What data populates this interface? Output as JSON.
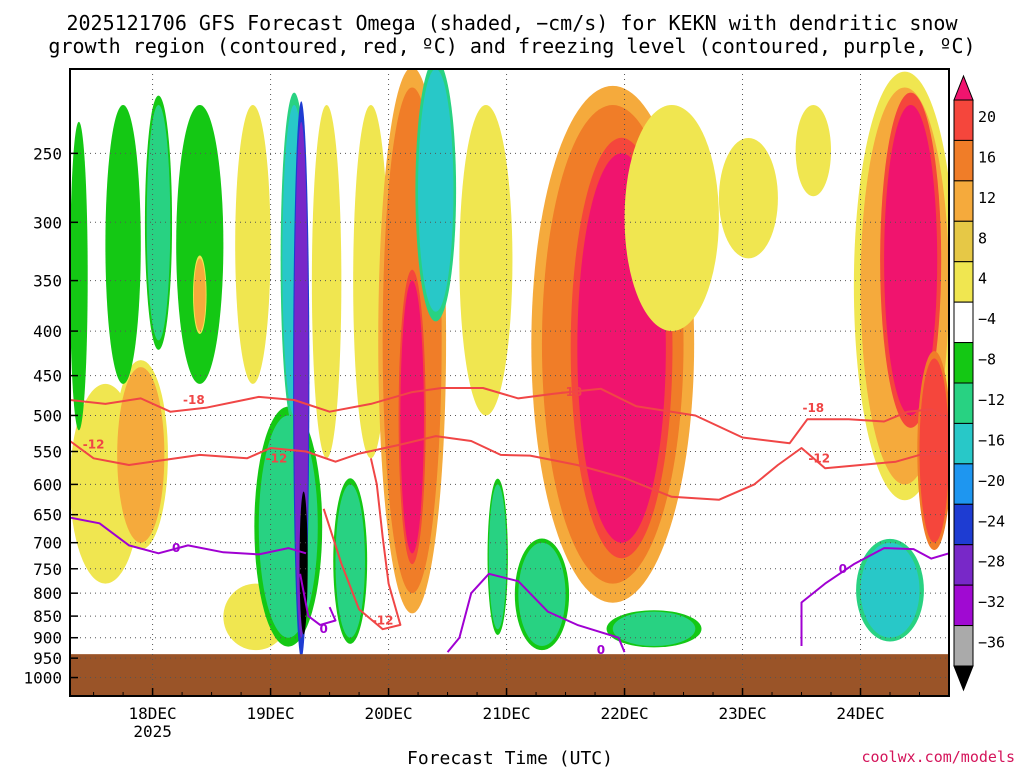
{
  "title_line1": "2025121706 GFS Forecast Omega (shaded, −cm/s) for KEKN with dendritic snow",
  "title_line2": "growth region (contoured, red, ºC) and freezing level (contoured, purple, ºC)",
  "credit": "coolwx.com/models",
  "chart_data": {
    "type": "heatmap",
    "title": "2025121706 GFS Forecast Omega (shaded, −cm/s) for KEKN with dendritic snow growth region (contoured, red, ºC) and freezing level (contoured, purple, ºC)",
    "xlabel": "Forecast Time (UTC)",
    "ylabel": "",
    "x_tick_labels": [
      "18DEC",
      "19DEC",
      "20DEC",
      "21DEC",
      "22DEC",
      "23DEC",
      "24DEC"
    ],
    "x_tick_sublabel": "2025",
    "x_range_days": [
      17.3,
      24.75
    ],
    "y_scale": "log-pressure",
    "y_range_hpa": [
      1050,
      200
    ],
    "y_tick_labels": [
      "250",
      "300",
      "350",
      "400",
      "450",
      "500",
      "550",
      "600",
      "650",
      "700",
      "750",
      "800",
      "850",
      "900",
      "950",
      "1000"
    ],
    "y_ticks_hpa": [
      250,
      300,
      350,
      400,
      450,
      500,
      550,
      600,
      650,
      700,
      750,
      800,
      850,
      900,
      950,
      1000
    ],
    "grid": true,
    "colorbar": {
      "labels": [
        "20",
        "16",
        "12",
        "8",
        "4",
        "−4",
        "−8",
        "−12",
        "−16",
        "−20",
        "−24",
        "−28",
        "−32",
        "−36"
      ],
      "colors": [
        "#f0146e",
        "#f5463c",
        "#f07d28",
        "#f5aa3c",
        "#e6c846",
        "#f0e650",
        "#ffffff",
        "#14c814",
        "#28d282",
        "#28c8c8",
        "#1e96f0",
        "#1e3cd2",
        "#7828c8",
        "#a00ad2",
        "#aaaaaa",
        "#000000"
      ]
    },
    "ground_level_hpa": 940,
    "ground_color": "#9a5428",
    "contour_labels": [
      {
        "text": "-18",
        "series": "dgz",
        "x": 18.35,
        "p": 480
      },
      {
        "text": "-12",
        "series": "dgz",
        "x": 17.5,
        "p": 540
      },
      {
        "text": "-12",
        "series": "dgz",
        "x": 19.05,
        "p": 560
      },
      {
        "text": "-18",
        "series": "dgz",
        "x": 21.55,
        "p": 470
      },
      {
        "text": "-12",
        "series": "dgz",
        "x": 19.95,
        "p": 860
      },
      {
        "text": "-18",
        "series": "dgz",
        "x": 23.6,
        "p": 490
      },
      {
        "text": "-12",
        "series": "dgz",
        "x": 23.65,
        "p": 560
      },
      {
        "text": "0",
        "series": "freezing",
        "x": 18.2,
        "p": 710
      },
      {
        "text": "0",
        "series": "freezing",
        "x": 19.45,
        "p": 880
      },
      {
        "text": "0",
        "series": "freezing",
        "x": 21.8,
        "p": 930
      },
      {
        "text": "0",
        "series": "freezing",
        "x": 23.85,
        "p": 750
      }
    ],
    "series": [
      {
        "name": "dendritic snow growth region",
        "color": "#f04646",
        "contours": [
          {
            "level": -18,
            "points": [
              [
                17.3,
                480
              ],
              [
                17.6,
                485
              ],
              [
                17.9,
                478
              ],
              [
                18.15,
                495
              ],
              [
                18.45,
                490
              ],
              [
                18.9,
                476
              ],
              [
                19.2,
                480
              ],
              [
                19.5,
                495
              ],
              [
                19.85,
                485
              ],
              [
                20.2,
                470
              ],
              [
                20.45,
                465
              ],
              [
                20.8,
                465
              ],
              [
                21.1,
                478
              ],
              [
                21.4,
                472
              ],
              [
                21.8,
                466
              ],
              [
                22.1,
                488
              ],
              [
                22.6,
                500
              ],
              [
                23.0,
                530
              ],
              [
                23.4,
                538
              ],
              [
                23.55,
                505
              ],
              [
                23.9,
                505
              ],
              [
                24.2,
                508
              ],
              [
                24.4,
                495
              ],
              [
                24.6,
                492
              ],
              [
                24.75,
                505
              ]
            ]
          },
          {
            "level": -12,
            "points": [
              [
                17.3,
                535
              ],
              [
                17.5,
                560
              ],
              [
                17.8,
                570
              ],
              [
                18.2,
                560
              ],
              [
                18.4,
                555
              ],
              [
                18.8,
                560
              ],
              [
                19.0,
                545
              ],
              [
                19.3,
                550
              ],
              [
                19.55,
                565
              ],
              [
                19.75,
                553
              ],
              [
                20.1,
                540
              ],
              [
                20.4,
                528
              ],
              [
                20.7,
                535
              ],
              [
                20.95,
                555
              ],
              [
                21.2,
                556
              ],
              [
                21.6,
                570
              ],
              [
                22.0,
                590
              ],
              [
                22.4,
                620
              ],
              [
                22.8,
                625
              ],
              [
                23.1,
                600
              ],
              [
                23.3,
                570
              ],
              [
                23.5,
                545
              ],
              [
                23.7,
                575
              ],
              [
                24.0,
                570
              ],
              [
                24.3,
                565
              ],
              [
                24.5,
                555
              ],
              [
                24.75,
                552
              ]
            ]
          },
          {
            "level": -12,
            "points": [
              [
                19.45,
                640
              ],
              [
                19.6,
                740
              ],
              [
                19.75,
                835
              ],
              [
                19.95,
                880
              ],
              [
                20.1,
                870
              ],
              [
                20.0,
                780
              ],
              [
                19.95,
                690
              ],
              [
                19.9,
                600
              ],
              [
                19.85,
                560
              ]
            ]
          }
        ]
      },
      {
        "name": "freezing level",
        "color": "#a000d2",
        "contours": [
          {
            "level": 0,
            "points": [
              [
                17.3,
                655
              ],
              [
                17.55,
                665
              ],
              [
                17.8,
                705
              ],
              [
                18.05,
                720
              ],
              [
                18.3,
                705
              ],
              [
                18.6,
                718
              ],
              [
                18.9,
                722
              ],
              [
                19.15,
                710
              ],
              [
                19.3,
                720
              ]
            ]
          },
          {
            "level": 0,
            "points": [
              [
                19.25,
                760
              ],
              [
                19.32,
                850
              ],
              [
                19.42,
                870
              ],
              [
                19.55,
                860
              ],
              [
                19.5,
                830
              ]
            ]
          },
          {
            "level": 0,
            "points": [
              [
                20.5,
                935
              ],
              [
                20.6,
                900
              ],
              [
                20.7,
                800
              ],
              [
                20.85,
                760
              ],
              [
                21.1,
                775
              ],
              [
                21.35,
                840
              ],
              [
                21.6,
                870
              ],
              [
                21.95,
                900
              ],
              [
                22.0,
                935
              ]
            ]
          },
          {
            "level": 0,
            "points": [
              [
                23.5,
                920
              ],
              [
                23.5,
                820
              ],
              [
                23.7,
                780
              ],
              [
                23.95,
                740
              ],
              [
                24.2,
                710
              ],
              [
                24.45,
                712
              ],
              [
                24.6,
                730
              ],
              [
                24.75,
                720
              ]
            ]
          }
        ]
      },
      {
        "name": "omega",
        "unit": "−cm/s",
        "blobs": [
          {
            "x0": 17.3,
            "x1": 17.9,
            "p0": 460,
            "p1": 780,
            "value": 5
          },
          {
            "x0": 17.7,
            "x1": 18.1,
            "p0": 440,
            "p1": 700,
            "value": 9
          },
          {
            "x0": 17.3,
            "x1": 17.45,
            "p0": 230,
            "p1": 520,
            "value": -6
          },
          {
            "x0": 17.6,
            "x1": 17.9,
            "p0": 220,
            "p1": 460,
            "value": -6
          },
          {
            "x0": 17.95,
            "x1": 18.15,
            "p0": 220,
            "p1": 410,
            "value": -10
          },
          {
            "x0": 18.2,
            "x1": 18.6,
            "p0": 220,
            "p1": 460,
            "value": -6
          },
          {
            "x0": 18.35,
            "x1": 18.45,
            "p0": 330,
            "p1": 400,
            "value": 10
          },
          {
            "x0": 18.7,
            "x1": 19.0,
            "p0": 220,
            "p1": 460,
            "value": 6
          },
          {
            "x0": 18.6,
            "x1": 19.15,
            "p0": 780,
            "p1": 930,
            "value": 4
          },
          {
            "x0": 18.9,
            "x1": 19.4,
            "p0": 500,
            "p1": 900,
            "value": -10
          },
          {
            "x0": 19.1,
            "x1": 19.3,
            "p0": 220,
            "p1": 500,
            "value": -14
          },
          {
            "x0": 19.2,
            "x1": 19.32,
            "p0": 230,
            "p1": 900,
            "value": -26
          },
          {
            "x0": 19.25,
            "x1": 19.31,
            "p0": 620,
            "p1": 880,
            "value": -40
          },
          {
            "x0": 19.35,
            "x1": 19.6,
            "p0": 220,
            "p1": 560,
            "value": 6
          },
          {
            "x0": 19.55,
            "x1": 19.8,
            "p0": 600,
            "p1": 900,
            "value": -10
          },
          {
            "x0": 19.7,
            "x1": 20.0,
            "p0": 220,
            "p1": 560,
            "value": 6
          },
          {
            "x0": 19.95,
            "x1": 20.45,
            "p0": 210,
            "p1": 800,
            "value": 14
          },
          {
            "x0": 20.1,
            "x1": 20.3,
            "p0": 350,
            "p1": 720,
            "value": 22
          },
          {
            "x0": 20.25,
            "x1": 20.55,
            "p0": 200,
            "p1": 380,
            "value": -14
          },
          {
            "x0": 20.6,
            "x1": 21.05,
            "p0": 220,
            "p1": 500,
            "value": 5
          },
          {
            "x0": 20.85,
            "x1": 21.0,
            "p0": 600,
            "p1": 880,
            "value": -8
          },
          {
            "x0": 21.1,
            "x1": 21.5,
            "p0": 700,
            "p1": 920,
            "value": -8
          },
          {
            "x0": 21.3,
            "x1": 22.5,
            "p0": 220,
            "p1": 780,
            "value": 13
          },
          {
            "x0": 21.6,
            "x1": 22.35,
            "p0": 250,
            "p1": 700,
            "value": 22
          },
          {
            "x0": 22.0,
            "x1": 22.8,
            "p0": 220,
            "p1": 400,
            "value": 6
          },
          {
            "x0": 21.9,
            "x1": 22.6,
            "p0": 840,
            "p1": 920,
            "value": -8
          },
          {
            "x0": 22.8,
            "x1": 23.3,
            "p0": 240,
            "p1": 330,
            "value": 5
          },
          {
            "x0": 23.45,
            "x1": 23.75,
            "p0": 220,
            "p1": 280,
            "value": 5
          },
          {
            "x0": 24.0,
            "x1": 24.75,
            "p0": 210,
            "p1": 600,
            "value": 10
          },
          {
            "x0": 24.2,
            "x1": 24.65,
            "p0": 220,
            "p1": 500,
            "value": 22
          },
          {
            "x0": 24.5,
            "x1": 24.75,
            "p0": 430,
            "p1": 700,
            "value": 17
          },
          {
            "x0": 24.0,
            "x1": 24.5,
            "p0": 700,
            "p1": 900,
            "value": -12
          }
        ]
      }
    ]
  }
}
